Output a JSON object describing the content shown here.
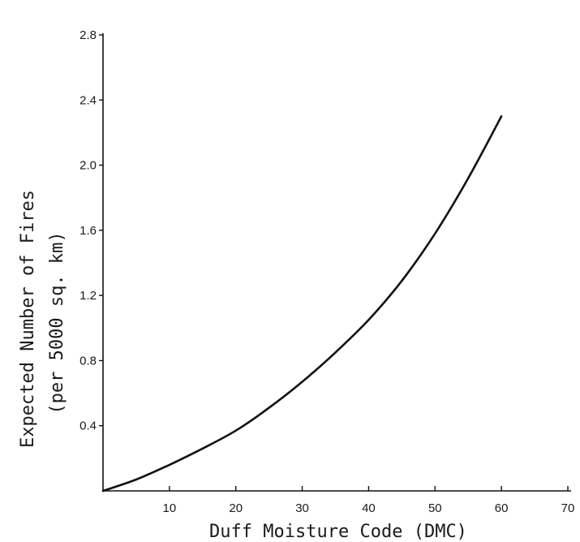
{
  "chart_data": {
    "type": "line",
    "title": "",
    "xlabel": "Duff Moisture Code (DMC)",
    "ylabel_line1": "Expected Number of Fires",
    "ylabel_line2": "(per 5000 sq. km)",
    "xlim": [
      0,
      70
    ],
    "ylim": [
      0,
      2.8
    ],
    "x_ticks": [
      10,
      20,
      30,
      40,
      50,
      60,
      70
    ],
    "x_tick_labels": [
      "10",
      "20",
      "30",
      "40",
      "50",
      "60",
      "70"
    ],
    "y_ticks": [
      0.4,
      0.8,
      1.2,
      1.6,
      2.0,
      2.4,
      2.8
    ],
    "y_tick_labels": [
      "0.4",
      "0.8",
      "1.2",
      "1.6",
      "2.0",
      "2.4",
      "2.8"
    ],
    "grid": false,
    "series": [
      {
        "x": [
          0,
          5,
          10,
          15,
          20,
          25,
          30,
          35,
          40,
          45,
          50,
          55,
          60
        ],
        "y": [
          0.0,
          0.07,
          0.16,
          0.26,
          0.37,
          0.51,
          0.67,
          0.85,
          1.05,
          1.29,
          1.58,
          1.92,
          2.3
        ],
        "color": "#111111"
      }
    ]
  }
}
